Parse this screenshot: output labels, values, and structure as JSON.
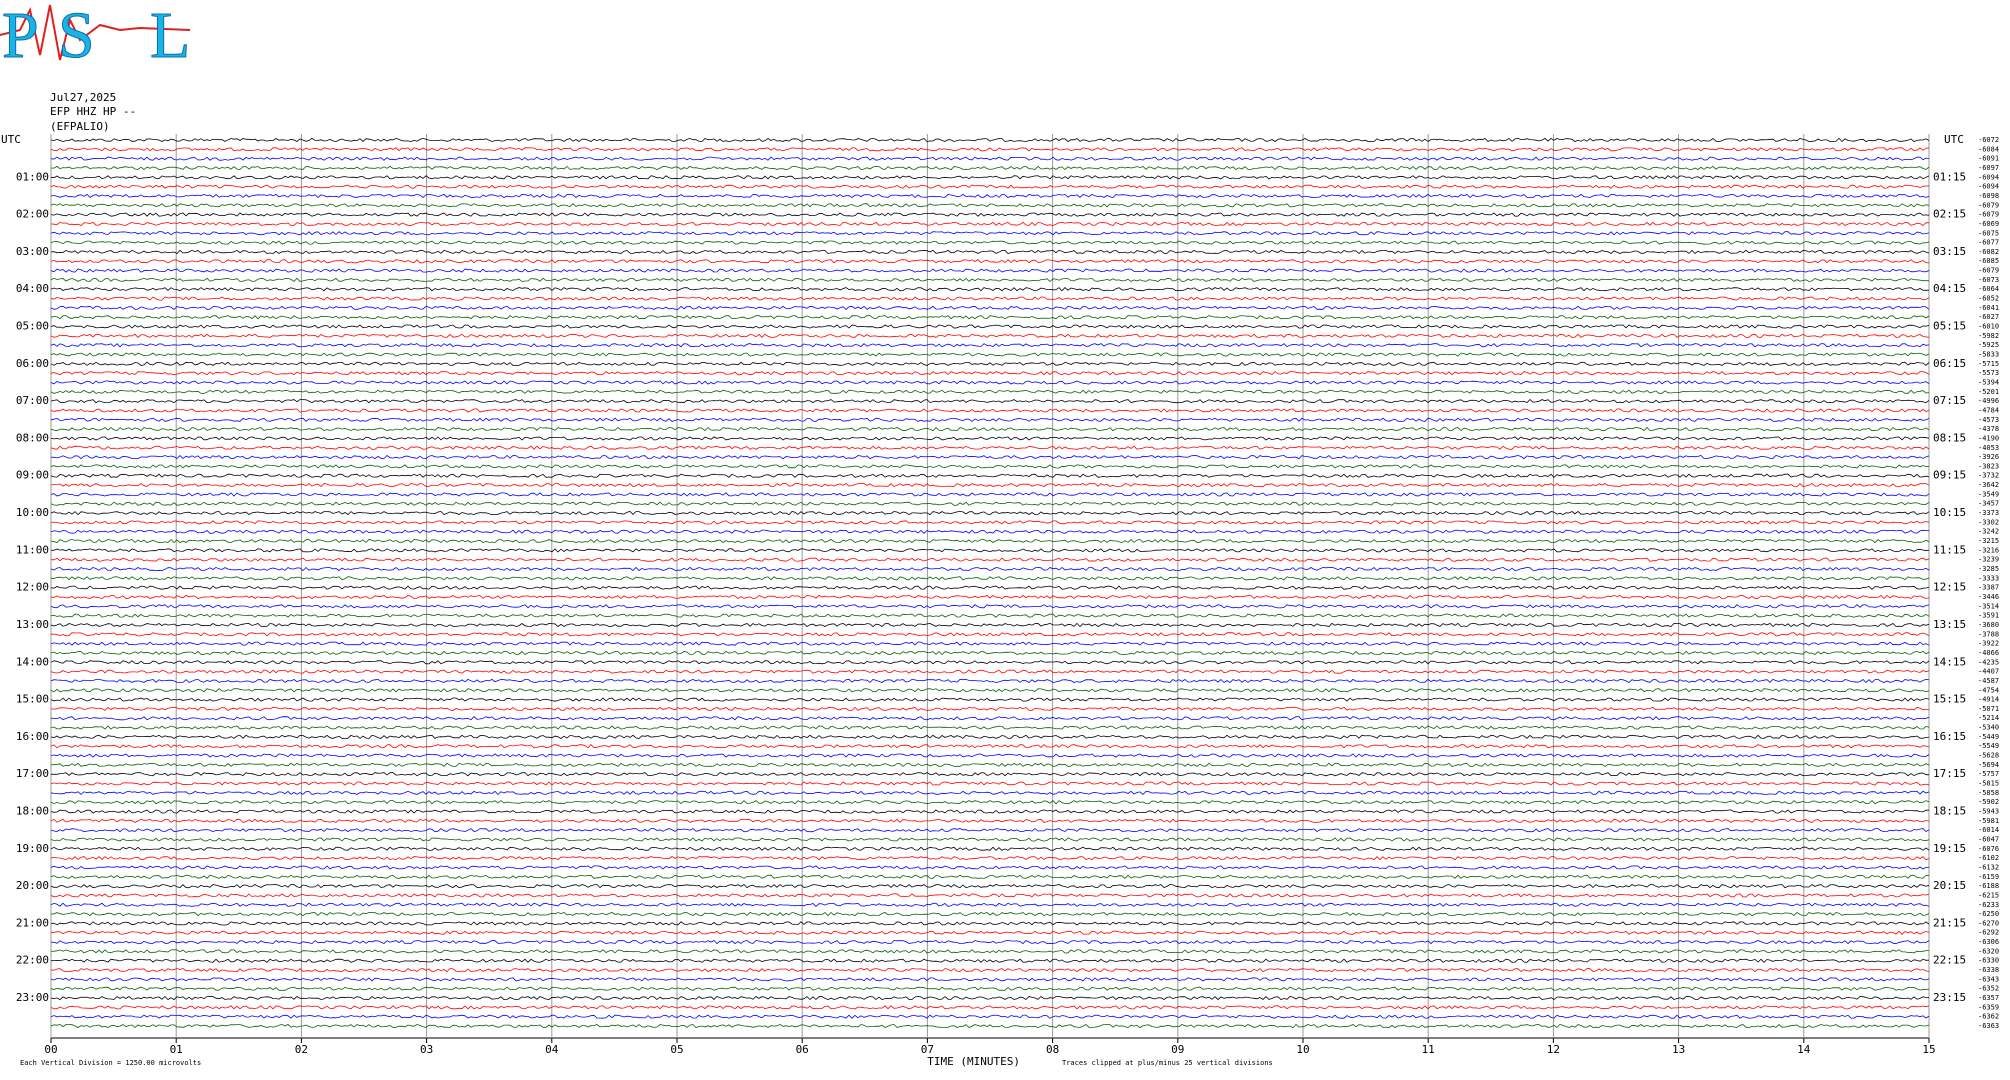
{
  "header": {
    "logo": [
      "P",
      "S",
      "L"
    ],
    "date": "Jul27,2025",
    "station": "EFP HHZ HP --",
    "location": "(EFPALIO)"
  },
  "chart_data": {
    "type": "helicorder",
    "xlabel": "TIME (MINUTES)",
    "xlim": [
      0,
      15
    ],
    "xticks": [
      {
        "value": 0,
        "label": "00"
      },
      {
        "value": 1,
        "label": "01"
      },
      {
        "value": 2,
        "label": "02"
      },
      {
        "value": 3,
        "label": "03"
      },
      {
        "value": 4,
        "label": "04"
      },
      {
        "value": 5,
        "label": "05"
      },
      {
        "value": 6,
        "label": "06"
      },
      {
        "value": 7,
        "label": "07"
      },
      {
        "value": 8,
        "label": "08"
      },
      {
        "value": 9,
        "label": "09"
      },
      10,
      11,
      12,
      13,
      14,
      15
    ],
    "grid": true,
    "trace_colors": [
      "#000000",
      "#ff0000",
      "#0000ff",
      "#006400"
    ],
    "trace_start_labels": [
      "UTC",
      null,
      null,
      null,
      "01:00",
      null,
      null,
      null,
      "02:00",
      null,
      null,
      null,
      "03:00",
      null,
      null,
      null,
      "04:00",
      null,
      null,
      null,
      "05:00",
      null,
      null,
      null,
      "06:00",
      null,
      null,
      null,
      "07:00",
      null,
      null,
      null,
      "08:00",
      null,
      null,
      null,
      "09:00",
      null,
      null,
      null,
      "10:00",
      null,
      null,
      null,
      "11:00",
      null,
      null,
      null,
      "12:00",
      null,
      null,
      null,
      "13:00",
      null,
      null,
      null,
      "14:00",
      null,
      null,
      null,
      "15:00",
      null,
      null,
      null,
      "16:00",
      null,
      null,
      null,
      "17:00",
      null,
      null,
      null,
      "18:00",
      null,
      null,
      null,
      "19:00",
      null,
      null,
      null,
      "20:00",
      null,
      null,
      null,
      "21:00",
      null,
      null,
      null,
      "22:00",
      null,
      null,
      null,
      "23:00",
      null,
      null,
      null
    ],
    "trace_end_labels": [
      "UTC",
      null,
      null,
      null,
      "01:15",
      null,
      null,
      null,
      "02:15",
      null,
      null,
      null,
      "03:15",
      null,
      null,
      null,
      "04:15",
      null,
      null,
      null,
      "05:15",
      null,
      null,
      null,
      "06:15",
      null,
      null,
      null,
      "07:15",
      null,
      null,
      null,
      "08:15",
      null,
      null,
      null,
      "09:15",
      null,
      null,
      null,
      "10:15",
      null,
      null,
      null,
      "11:15",
      null,
      null,
      null,
      "12:15",
      null,
      null,
      null,
      "13:15",
      null,
      null,
      null,
      "14:15",
      null,
      null,
      null,
      "15:15",
      null,
      null,
      null,
      "16:15",
      null,
      null,
      null,
      "17:15",
      null,
      null,
      null,
      "18:15",
      null,
      null,
      null,
      "19:15",
      null,
      null,
      null,
      "20:15",
      null,
      null,
      null,
      "21:15",
      null,
      null,
      null,
      "22:15",
      null,
      null,
      null,
      "23:15",
      null,
      null,
      null
    ],
    "trace_offsets": [
      -6072,
      -6084,
      -6091,
      -6097,
      -6094,
      -6094,
      -6098,
      -6079,
      -6079,
      -6069,
      -6075,
      -6077,
      -6082,
      -6085,
      -6079,
      -6073,
      -6064,
      -6052,
      -6041,
      -6027,
      -6010,
      -5982,
      -5925,
      -5833,
      -5715,
      -5573,
      -5394,
      -5201,
      -4996,
      -4784,
      -4573,
      -4378,
      -4190,
      -4053,
      -3926,
      -3823,
      -3732,
      -3642,
      -3549,
      -3457,
      -3373,
      -3302,
      -3242,
      -3215,
      -3216,
      -3239,
      -3285,
      -3333,
      -3387,
      -3446,
      -3514,
      -3591,
      -3680,
      -3788,
      -3922,
      -4066,
      -4235,
      -4407,
      -4587,
      -4754,
      -4914,
      -5071,
      -5214,
      -5340,
      -5449,
      -5549,
      -5628,
      -5694,
      -5757,
      -5815,
      -5858,
      -5902,
      -5943,
      -5981,
      -6014,
      -6047,
      -6076,
      -6102,
      -6132,
      -6159,
      -6188,
      -6215,
      -6233,
      -6250,
      -6270,
      -6292,
      -6306,
      -6320,
      -6330,
      -6338,
      -6343,
      -6352,
      -6357,
      -6359,
      -6362,
      -6363
    ],
    "footer_left": "Each Vertical Division = 1250.00 microvolts",
    "footer_right": "Traces clipped at plus/minus 25 vertical divisions"
  }
}
